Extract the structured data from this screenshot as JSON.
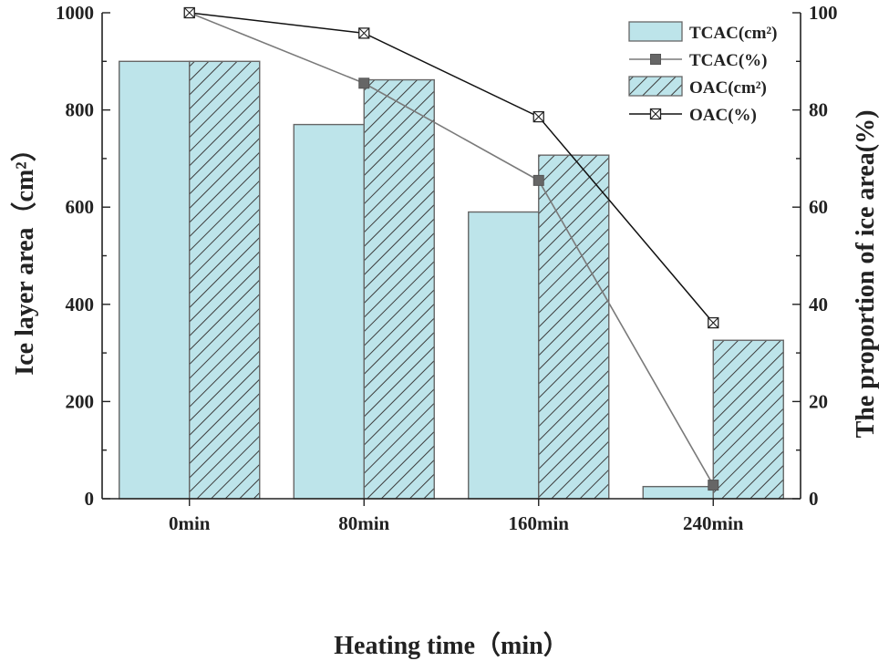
{
  "chart_data": {
    "type": "bar",
    "categories": [
      "0min",
      "80min",
      "160min",
      "240min"
    ],
    "series": [
      {
        "name": "TCAC(cm²)",
        "kind": "bar",
        "axis": "left",
        "values": [
          900,
          770,
          590,
          25
        ]
      },
      {
        "name": "OAC(cm²)",
        "kind": "bar",
        "axis": "left",
        "hatched": true,
        "values": [
          900,
          862,
          707,
          326
        ]
      },
      {
        "name": "TCAC(%)",
        "kind": "line",
        "axis": "right",
        "marker": "square",
        "values": [
          100,
          85.5,
          65.5,
          2.8
        ]
      },
      {
        "name": "OAC(%)",
        "kind": "line",
        "axis": "right",
        "marker": "crossed-square",
        "values": [
          100,
          95.8,
          78.6,
          36.2
        ]
      }
    ],
    "xlabel": "Heating time（min）",
    "ylabel": "Ice layer area（cm²）",
    "y2label": "The proportion of ice area(%)",
    "ylim": [
      0,
      1000
    ],
    "y2lim": [
      0,
      100
    ],
    "yticks": [
      0,
      200,
      400,
      600,
      800,
      1000
    ],
    "y2ticks": [
      0,
      20,
      40,
      60,
      80,
      100
    ],
    "legend": {
      "position": "top-right",
      "entries": [
        "TCAC(cm²)",
        "TCAC(%)",
        "OAC(cm²)",
        "OAC(%)"
      ]
    },
    "colors": {
      "bar_fill": "#bde4ea",
      "bar_edge": "#666666",
      "hatch": "#3c3c3c",
      "tcac_line": "#7a7a7a",
      "tcac_marker": "#666666",
      "oac_line": "#111111",
      "axis": "#222222"
    }
  }
}
